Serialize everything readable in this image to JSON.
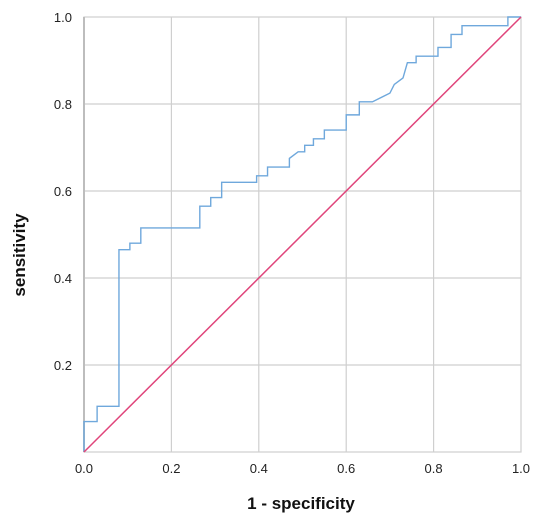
{
  "chart_data": {
    "type": "line",
    "title": "",
    "xlabel": "1 - specificity",
    "ylabel": "sensitivity",
    "xlim": [
      0,
      1
    ],
    "ylim": [
      0,
      1
    ],
    "x_ticks": [
      "0.0",
      "0.2",
      "0.4",
      "0.6",
      "0.8",
      "1.0"
    ],
    "y_ticks": [
      "0.2",
      "0.4",
      "0.6",
      "0.8",
      "1.0"
    ],
    "grid": true,
    "legend": "none",
    "series": [
      {
        "color": "#6fa8dc",
        "points": [
          [
            0.0,
            0.0
          ],
          [
            0.0,
            0.07
          ],
          [
            0.03,
            0.07
          ],
          [
            0.03,
            0.105
          ],
          [
            0.08,
            0.105
          ],
          [
            0.08,
            0.465
          ],
          [
            0.105,
            0.465
          ],
          [
            0.105,
            0.48
          ],
          [
            0.13,
            0.48
          ],
          [
            0.13,
            0.515
          ],
          [
            0.265,
            0.515
          ],
          [
            0.265,
            0.565
          ],
          [
            0.29,
            0.565
          ],
          [
            0.29,
            0.585
          ],
          [
            0.315,
            0.585
          ],
          [
            0.315,
            0.62
          ],
          [
            0.395,
            0.62
          ],
          [
            0.395,
            0.635
          ],
          [
            0.42,
            0.635
          ],
          [
            0.42,
            0.655
          ],
          [
            0.47,
            0.655
          ],
          [
            0.47,
            0.675
          ],
          [
            0.49,
            0.69
          ],
          [
            0.505,
            0.69
          ],
          [
            0.505,
            0.705
          ],
          [
            0.525,
            0.705
          ],
          [
            0.525,
            0.72
          ],
          [
            0.55,
            0.72
          ],
          [
            0.55,
            0.74
          ],
          [
            0.6,
            0.74
          ],
          [
            0.6,
            0.775
          ],
          [
            0.63,
            0.775
          ],
          [
            0.63,
            0.805
          ],
          [
            0.66,
            0.805
          ],
          [
            0.7,
            0.825
          ],
          [
            0.71,
            0.845
          ],
          [
            0.73,
            0.86
          ],
          [
            0.74,
            0.895
          ],
          [
            0.76,
            0.895
          ],
          [
            0.76,
            0.91
          ],
          [
            0.81,
            0.91
          ],
          [
            0.81,
            0.93
          ],
          [
            0.84,
            0.93
          ],
          [
            0.84,
            0.96
          ],
          [
            0.865,
            0.96
          ],
          [
            0.865,
            0.98
          ],
          [
            0.97,
            0.98
          ],
          [
            0.97,
            1.0
          ],
          [
            1.0,
            1.0
          ]
        ]
      },
      {
        "color": "#e0457b",
        "points": [
          [
            0.0,
            0.0
          ],
          [
            1.0,
            1.0
          ]
        ]
      }
    ]
  }
}
